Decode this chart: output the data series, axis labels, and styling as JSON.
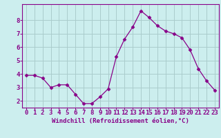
{
  "x": [
    0,
    1,
    2,
    3,
    4,
    5,
    6,
    7,
    8,
    9,
    10,
    11,
    12,
    13,
    14,
    15,
    16,
    17,
    18,
    19,
    20,
    21,
    22,
    23
  ],
  "y": [
    3.9,
    3.9,
    3.7,
    3.0,
    3.2,
    3.2,
    2.5,
    1.8,
    1.8,
    2.3,
    2.9,
    5.3,
    6.6,
    7.5,
    8.7,
    8.2,
    7.6,
    7.2,
    7.0,
    6.7,
    5.8,
    4.4,
    3.5,
    2.8
  ],
  "line_color": "#880088",
  "marker": "D",
  "marker_size": 2.5,
  "bg_color": "#cceeee",
  "grid_color": "#aacccc",
  "xlabel": "Windchill (Refroidissement éolien,°C)",
  "xlabel_color": "#880088",
  "yticks": [
    2,
    3,
    4,
    5,
    6,
    7,
    8
  ],
  "xlim": [
    -0.5,
    23.5
  ],
  "ylim": [
    1.5,
    9.2
  ],
  "tick_color": "#880088",
  "spine_color": "#880088",
  "font_size": 6.5,
  "xlabel_font_size": 6.5
}
